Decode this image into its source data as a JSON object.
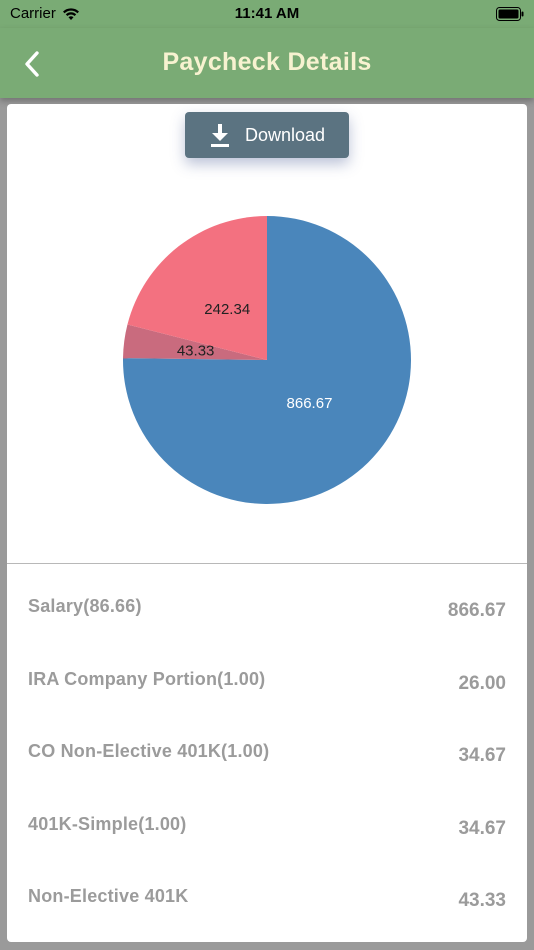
{
  "status_bar": {
    "carrier": "Carrier",
    "time": "11:41 AM"
  },
  "header": {
    "title": "Paycheck Details",
    "back_icon": "chevron-left-icon"
  },
  "download": {
    "label": "Download",
    "icon": "download-icon"
  },
  "colors": {
    "header_bg": "#7aab75",
    "title_text": "#f7f2d0",
    "button_bg": "#5b7381",
    "slice_blue": "#4a86bb",
    "slice_pink": "#f37180",
    "slice_mauve": "#c96b7e"
  },
  "chart_data": {
    "type": "pie",
    "slices": [
      {
        "value": 866.67,
        "label": "866.67",
        "color": "#4a86bb"
      },
      {
        "value": 43.33,
        "label": "43.33",
        "color": "#c96b7e"
      },
      {
        "value": 242.34,
        "label": "242.34",
        "color": "#f37180"
      }
    ]
  },
  "items": [
    {
      "label": "Salary(86.66)",
      "amount": "866.67"
    },
    {
      "label": "IRA Company Portion(1.00)",
      "amount": "26.00"
    },
    {
      "label": "CO Non-Elective 401K(1.00)",
      "amount": "34.67"
    },
    {
      "label": "401K-Simple(1.00)",
      "amount": "34.67"
    },
    {
      "label": "Non-Elective 401K",
      "amount": "43.33"
    }
  ]
}
